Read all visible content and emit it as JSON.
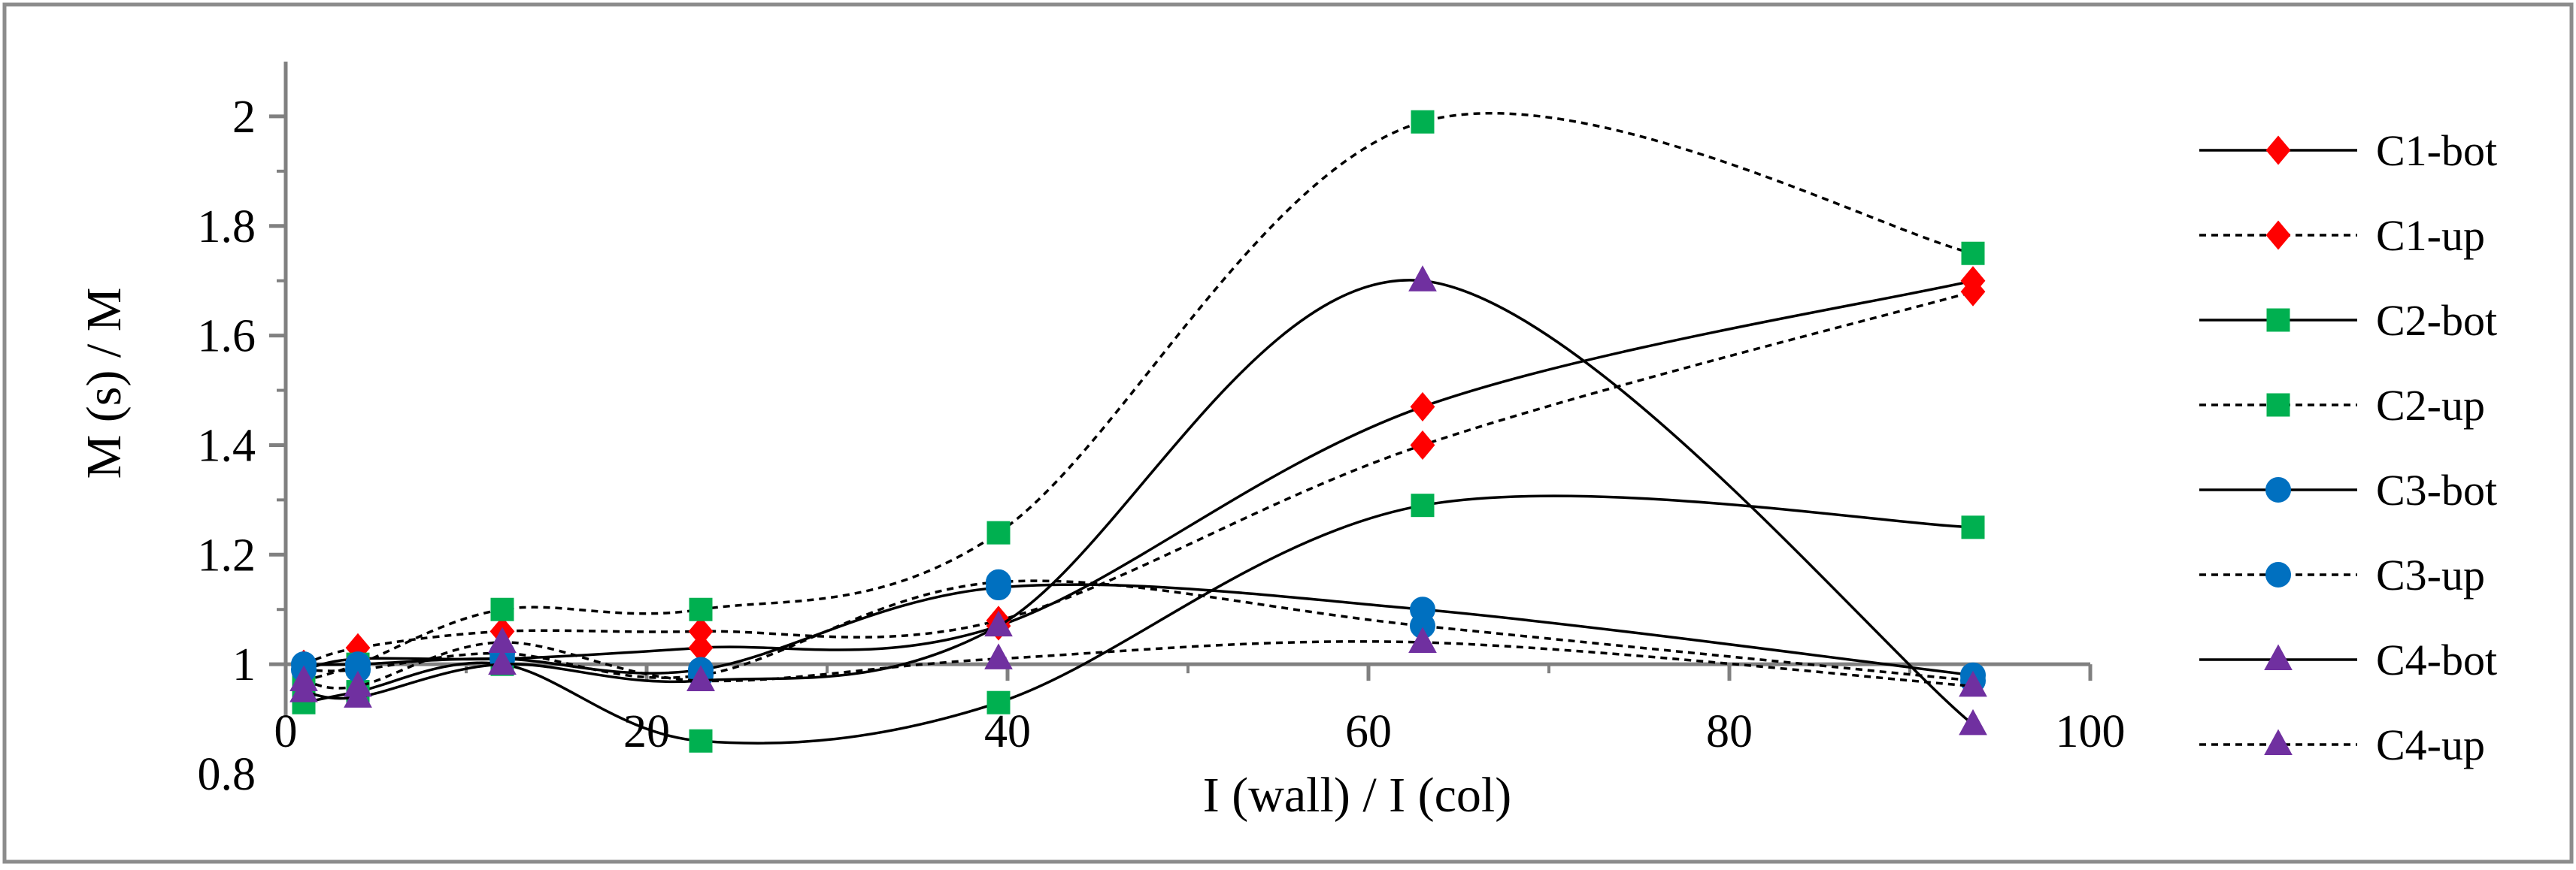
{
  "chart_data": {
    "type": "scatter",
    "title": "",
    "xlabel": "I (wall) / I (col)",
    "ylabel": "M (s) / M",
    "xlim": [
      0,
      100
    ],
    "ylim": [
      0.8,
      2.1
    ],
    "x_axis_crosses_y_at": 1,
    "xticks": [
      "0",
      "20",
      "40",
      "60",
      "80",
      "100"
    ],
    "yticks": [
      "0.8",
      "1",
      "1.2",
      "1.4",
      "1.6",
      "1.8",
      "2"
    ],
    "grid": false,
    "legend": "right",
    "x": [
      1,
      4,
      12,
      23,
      39.5,
      63,
      93.5
    ],
    "series": [
      {
        "name": "C1-bot",
        "line": "solid",
        "marker": "diamond",
        "color": "#ff0000",
        "values": [
          0.99,
          1.01,
          1.01,
          1.03,
          1.07,
          1.47,
          1.7
        ]
      },
      {
        "name": "C1-up",
        "line": "dashed",
        "marker": "diamond",
        "color": "#ff0000",
        "values": [
          1.0,
          1.03,
          1.06,
          1.06,
          1.08,
          1.4,
          1.68
        ]
      },
      {
        "name": "C2-bot",
        "line": "solid",
        "marker": "square",
        "color": "#00b050",
        "values": [
          0.93,
          0.95,
          1.0,
          0.86,
          0.93,
          1.29,
          1.25
        ]
      },
      {
        "name": "C2-up",
        "line": "dashed",
        "marker": "square",
        "color": "#00b050",
        "values": [
          0.97,
          1.0,
          1.1,
          1.1,
          1.24,
          1.99,
          1.75
        ]
      },
      {
        "name": "C3-bot",
        "line": "solid",
        "marker": "circle",
        "color": "#0070c0",
        "values": [
          1.0,
          1.0,
          1.01,
          0.99,
          1.14,
          1.1,
          0.98
        ]
      },
      {
        "name": "C3-up",
        "line": "dashed",
        "marker": "circle",
        "color": "#0070c0",
        "values": [
          0.99,
          0.99,
          1.02,
          0.98,
          1.15,
          1.07,
          0.97
        ]
      },
      {
        "name": "C4-bot",
        "line": "solid",
        "marker": "triangle",
        "color": "#7030a0",
        "values": [
          0.95,
          0.94,
          1.0,
          0.97,
          1.07,
          1.7,
          0.89
        ]
      },
      {
        "name": "C4-up",
        "line": "dashed",
        "marker": "triangle",
        "color": "#7030a0",
        "values": [
          0.97,
          0.96,
          1.04,
          0.97,
          1.01,
          1.04,
          0.96
        ]
      }
    ]
  }
}
